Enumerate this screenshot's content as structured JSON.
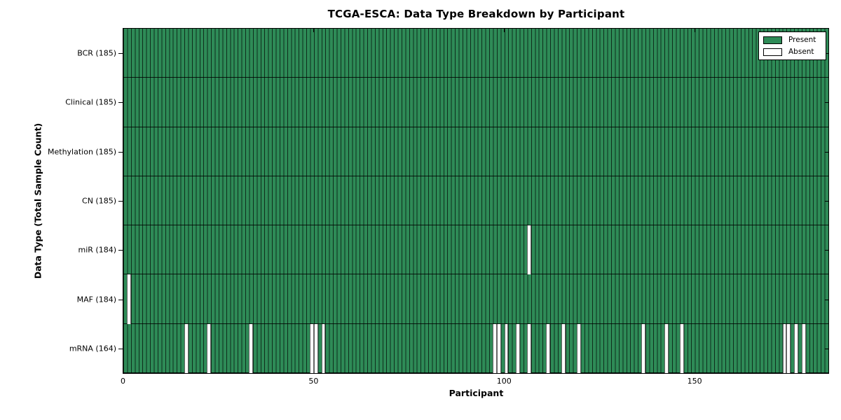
{
  "title": "TCGA-ESCA: Data Type Breakdown by Participant",
  "colors": {
    "present": "#2e8b57",
    "absent": "#ffffff",
    "edge": "#000000",
    "background": "#ffffff"
  },
  "legend": {
    "entries": [
      {
        "label": "Present",
        "color": "#2e8b57"
      },
      {
        "label": "Absent",
        "color": "#ffffff"
      }
    ]
  },
  "chart_data": {
    "type": "heatmap",
    "title": "TCGA-ESCA: Data Type Breakdown by Participant",
    "xlabel": "Participant",
    "ylabel": "Data Type (Total Sample Count)",
    "x_ticks": [
      0,
      50,
      100,
      150
    ],
    "x_range": [
      0,
      185
    ],
    "n_participants": 185,
    "grid": false,
    "legend_position": "upper right",
    "legend_entries": [
      "Present",
      "Absent"
    ],
    "rows": [
      {
        "label": "BCR (185)",
        "data_type": "BCR",
        "total_samples": 185,
        "absent_participants": []
      },
      {
        "label": "Clinical (185)",
        "data_type": "Clinical",
        "total_samples": 185,
        "absent_participants": []
      },
      {
        "label": "Methylation (185)",
        "data_type": "Methylation",
        "total_samples": 185,
        "absent_participants": []
      },
      {
        "label": "CN (185)",
        "data_type": "CN",
        "total_samples": 185,
        "absent_participants": []
      },
      {
        "label": "miR (184)",
        "data_type": "miR",
        "total_samples": 184,
        "absent_participants": [
          106
        ]
      },
      {
        "label": "MAF (184)",
        "data_type": "MAF",
        "total_samples": 184,
        "absent_participants": [
          1
        ]
      },
      {
        "label": "mRNA (164)",
        "data_type": "mRNA",
        "total_samples": 164,
        "absent_participants": [
          16,
          22,
          33,
          49,
          50,
          52,
          97,
          98,
          100,
          103,
          106,
          111,
          115,
          119,
          136,
          142,
          146,
          173,
          174,
          176,
          178
        ]
      }
    ]
  }
}
